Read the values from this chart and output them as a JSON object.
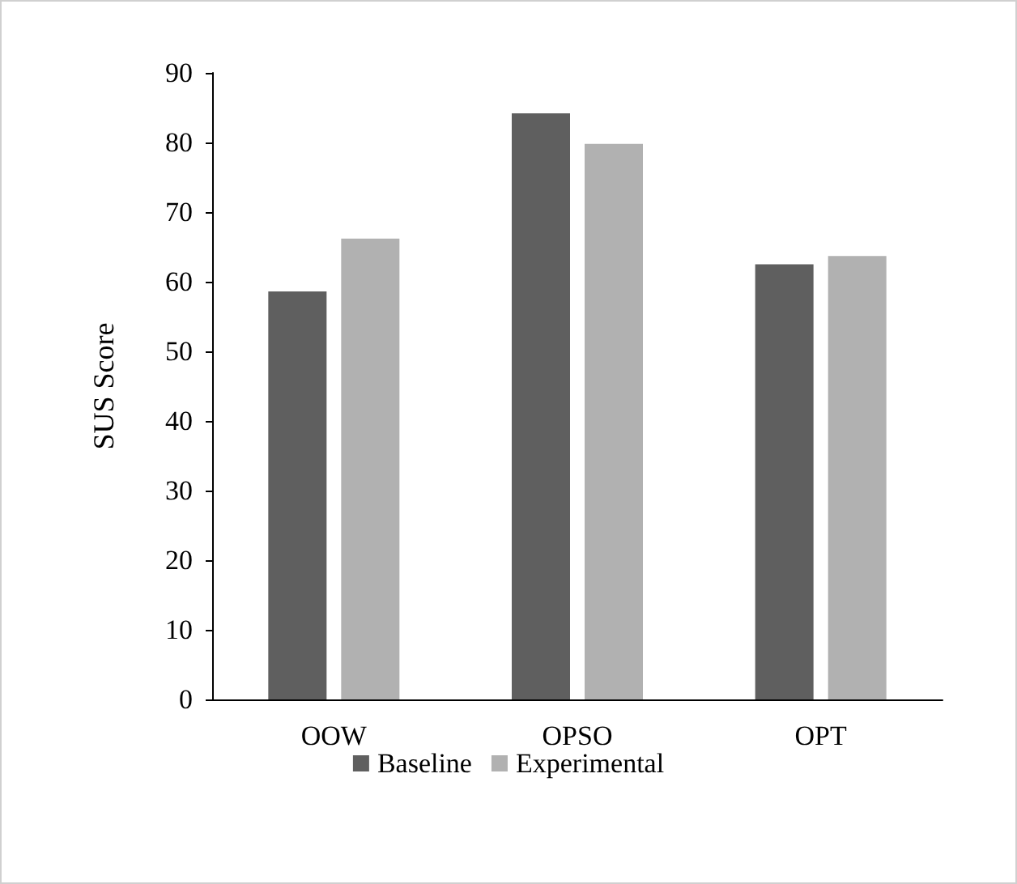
{
  "chart_data": {
    "type": "bar",
    "ylabel": "SUS Score",
    "categories": [
      "OOW",
      "OPSO",
      "OPT"
    ],
    "series": [
      {
        "name": "Baseline",
        "color": "#5f5f5f",
        "values": [
          58.6,
          84.2,
          62.5
        ]
      },
      {
        "name": "Experimental",
        "color": "#b1b1b1",
        "values": [
          66.2,
          79.8,
          63.7
        ]
      }
    ],
    "ylim": [
      0,
      90
    ],
    "yticks": [
      0,
      10,
      20,
      30,
      40,
      50,
      60,
      70,
      80,
      90
    ],
    "grid": false,
    "legend": "bottom"
  }
}
